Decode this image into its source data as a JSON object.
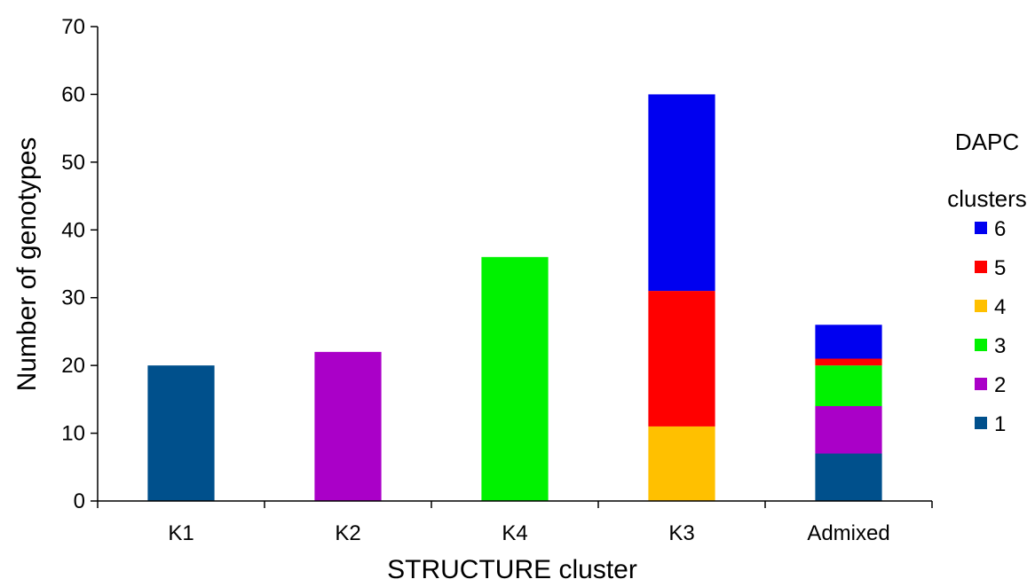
{
  "chart_data": {
    "type": "bar",
    "stacked": true,
    "categories": [
      "K1",
      "K2",
      "K4",
      "K3",
      "Admixed"
    ],
    "series": [
      {
        "name": "1",
        "color": "#00508C",
        "values": [
          20,
          0,
          0,
          0,
          7
        ]
      },
      {
        "name": "2",
        "color": "#AA00C8",
        "values": [
          0,
          22,
          0,
          0,
          7
        ]
      },
      {
        "name": "3",
        "color": "#00F200",
        "values": [
          0,
          0,
          36,
          0,
          6
        ]
      },
      {
        "name": "4",
        "color": "#FFC000",
        "values": [
          0,
          0,
          0,
          11,
          0
        ]
      },
      {
        "name": "5",
        "color": "#FF0000",
        "values": [
          0,
          0,
          0,
          20,
          1
        ]
      },
      {
        "name": "6",
        "color": "#0000F0",
        "values": [
          0,
          0,
          0,
          29,
          5
        ]
      }
    ],
    "xlabel": "STRUCTURE cluster",
    "ylabel": "Number of genotypes",
    "ylim": [
      0,
      70
    ],
    "yticks": [
      "0",
      "10",
      "20",
      "30",
      "40",
      "50",
      "60",
      "70"
    ],
    "grid": false,
    "legend": {
      "title_lines": [
        "DAPC",
        "clusters"
      ],
      "placement": "right"
    }
  }
}
